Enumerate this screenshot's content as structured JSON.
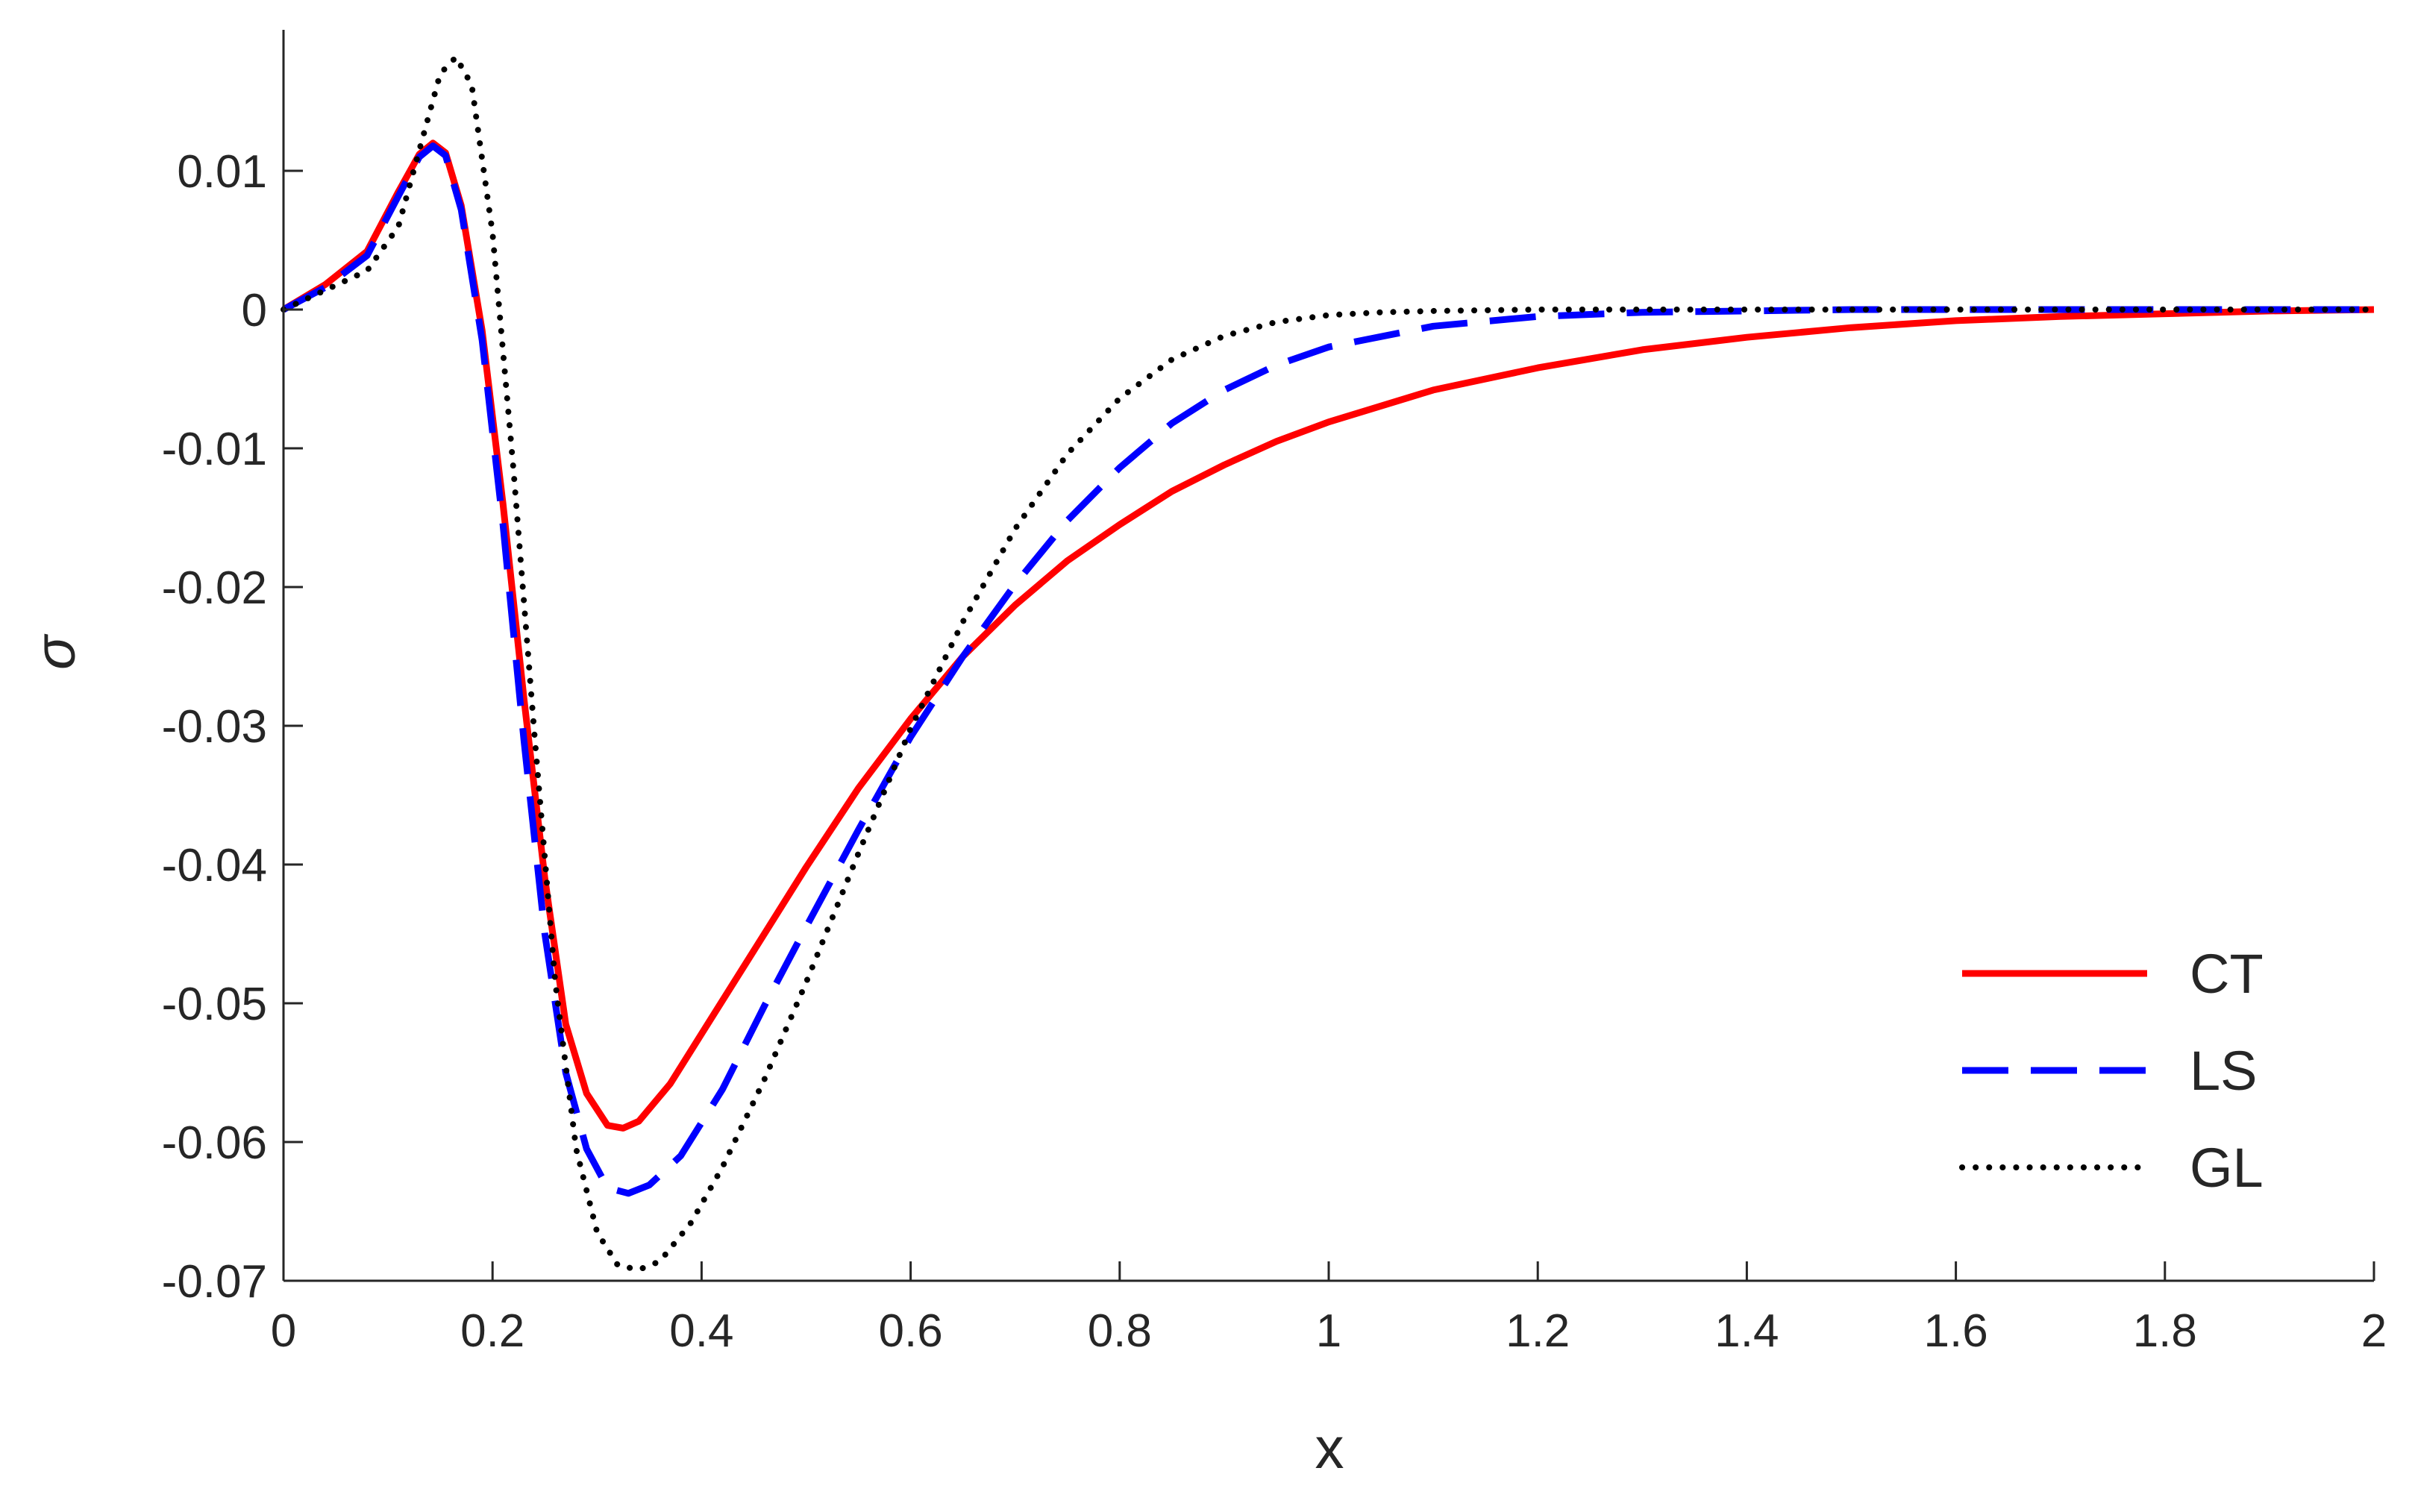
{
  "chart_data": {
    "type": "line",
    "title": "",
    "xlabel": "x",
    "ylabel": "σ",
    "xlim": [
      0,
      2
    ],
    "ylim": [
      -0.07,
      0.02
    ],
    "x_ticks": [
      0,
      0.2,
      0.4,
      0.6,
      0.8,
      1,
      1.2,
      1.4,
      1.6,
      1.8,
      2
    ],
    "x_tick_labels": [
      "0",
      "0.2",
      "0.4",
      "0.6",
      "0.8",
      "1",
      "1.2",
      "1.4",
      "1.6",
      "1.8",
      "2"
    ],
    "y_ticks": [
      0.01,
      0,
      -0.01,
      -0.02,
      -0.03,
      -0.04,
      -0.05,
      -0.06,
      -0.07
    ],
    "y_tick_labels": [
      "0.01",
      "0",
      "-0.01",
      "-0.02",
      "-0.03",
      "-0.04",
      "-0.05",
      "-0.06",
      "-0.07"
    ],
    "grid": false,
    "legend_position": "bottom-right",
    "series": [
      {
        "name": "CT",
        "color": "#ff0000",
        "style": "solid",
        "x": [
          0,
          0.04,
          0.08,
          0.11,
          0.13,
          0.143,
          0.155,
          0.17,
          0.19,
          0.21,
          0.23,
          0.25,
          0.27,
          0.29,
          0.31,
          0.325,
          0.34,
          0.37,
          0.4,
          0.45,
          0.5,
          0.55,
          0.6,
          0.65,
          0.7,
          0.75,
          0.8,
          0.85,
          0.9,
          0.95,
          1.0,
          1.1,
          1.2,
          1.3,
          1.4,
          1.5,
          1.6,
          1.7,
          1.8,
          1.9,
          2.0
        ],
        "y": [
          0,
          0.0018,
          0.0042,
          0.0085,
          0.0112,
          0.012,
          0.0113,
          0.0075,
          -0.0015,
          -0.014,
          -0.028,
          -0.041,
          -0.0515,
          -0.0565,
          -0.0588,
          -0.059,
          -0.0585,
          -0.0558,
          -0.0522,
          -0.0462,
          -0.0402,
          -0.0345,
          -0.0295,
          -0.025,
          -0.0213,
          -0.0181,
          -0.0155,
          -0.0131,
          -0.0112,
          -0.0095,
          -0.0081,
          -0.0058,
          -0.0042,
          -0.0029,
          -0.002,
          -0.0013,
          -0.0008,
          -0.0005,
          -0.0003,
          -0.0001,
          0
        ]
      },
      {
        "name": "LS",
        "color": "#0000ff",
        "style": "dashed",
        "x": [
          0,
          0.04,
          0.08,
          0.11,
          0.13,
          0.143,
          0.155,
          0.17,
          0.19,
          0.21,
          0.23,
          0.25,
          0.27,
          0.29,
          0.31,
          0.33,
          0.35,
          0.38,
          0.42,
          0.46,
          0.5,
          0.55,
          0.6,
          0.65,
          0.7,
          0.75,
          0.8,
          0.85,
          0.9,
          0.95,
          1.0,
          1.1,
          1.2,
          1.3,
          1.4,
          1.5,
          1.6,
          1.7,
          1.8,
          1.9,
          2.0
        ],
        "y": [
          0,
          0.0016,
          0.0039,
          0.0082,
          0.011,
          0.0118,
          0.0111,
          0.0072,
          -0.0022,
          -0.0155,
          -0.031,
          -0.045,
          -0.055,
          -0.0605,
          -0.0633,
          -0.0637,
          -0.0631,
          -0.061,
          -0.0562,
          -0.0502,
          -0.0445,
          -0.0375,
          -0.0308,
          -0.025,
          -0.0198,
          -0.0152,
          -0.0114,
          -0.0082,
          -0.0058,
          -0.004,
          -0.0027,
          -0.0012,
          -0.0005,
          -0.0002,
          -0.0001,
          0,
          0,
          0,
          0,
          0,
          0
        ]
      },
      {
        "name": "GL",
        "color": "#000000",
        "style": "dotted",
        "x": [
          0,
          0.04,
          0.08,
          0.11,
          0.13,
          0.15,
          0.165,
          0.18,
          0.2,
          0.22,
          0.24,
          0.26,
          0.28,
          0.3,
          0.32,
          0.34,
          0.36,
          0.39,
          0.42,
          0.46,
          0.5,
          0.55,
          0.6,
          0.65,
          0.7,
          0.75,
          0.8,
          0.85,
          0.9,
          0.95,
          1.0,
          1.05,
          1.1,
          1.2,
          1.3,
          1.4,
          1.5,
          1.6,
          1.7,
          1.8,
          2.0
        ],
        "y": [
          0,
          0.0014,
          0.0028,
          0.006,
          0.0115,
          0.017,
          0.0182,
          0.0162,
          0.0055,
          -0.0115,
          -0.0305,
          -0.0485,
          -0.0605,
          -0.0665,
          -0.0689,
          -0.0692,
          -0.0686,
          -0.0658,
          -0.0618,
          -0.0555,
          -0.0485,
          -0.0392,
          -0.0302,
          -0.0225,
          -0.0158,
          -0.0104,
          -0.0064,
          -0.0036,
          -0.0019,
          -0.0009,
          -0.0004,
          -0.0002,
          -0.0001,
          0,
          0,
          0,
          0,
          0,
          0,
          0,
          0
        ]
      }
    ]
  }
}
